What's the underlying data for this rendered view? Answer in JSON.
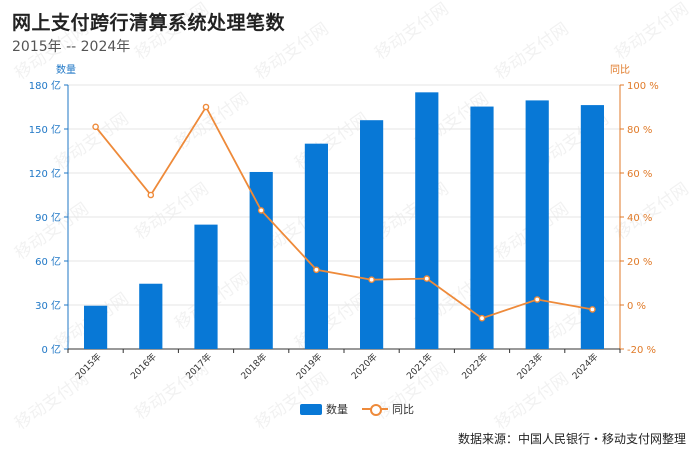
{
  "title": "网上支付跨行清算系统处理笔数",
  "subtitle": "2015年 -- 2024年",
  "source": "数据来源：中国人民银行・移动支付网整理",
  "watermark": "移动支付网",
  "colors": {
    "bar": "#0878d6",
    "line": "#ee8a3a",
    "left_axis": "#1f77c6",
    "right_axis": "#e07a28"
  },
  "chart_data": {
    "type": "bar",
    "categories": [
      "2015年",
      "2016年",
      "2017年",
      "2018年",
      "2019年",
      "2020年",
      "2021年",
      "2022年",
      "2023年",
      "2024年"
    ],
    "series": [
      {
        "name": "数量",
        "type": "bar",
        "axis": "left",
        "values": [
          29.5,
          44.5,
          84.8,
          120.7,
          140.0,
          156.0,
          175.0,
          165.3,
          169.5,
          166.3
        ]
      },
      {
        "name": "同比",
        "type": "line",
        "axis": "right",
        "values": [
          81,
          50,
          90,
          43,
          16,
          11.5,
          12,
          -6,
          2.5,
          -2
        ]
      }
    ],
    "left_axis": {
      "title": "数量",
      "ylim": [
        0,
        180
      ],
      "ticks": [
        "0 亿",
        "30 亿",
        "60 亿",
        "90 亿",
        "120 亿",
        "150 亿",
        "180 亿"
      ]
    },
    "right_axis": {
      "title": "同比",
      "ylim": [
        -20,
        100
      ],
      "ticks": [
        "-20 %",
        "0 %",
        "20 %",
        "40 %",
        "60 %",
        "80 %",
        "100 %"
      ]
    },
    "grid": true,
    "legend": "bottom-center"
  }
}
